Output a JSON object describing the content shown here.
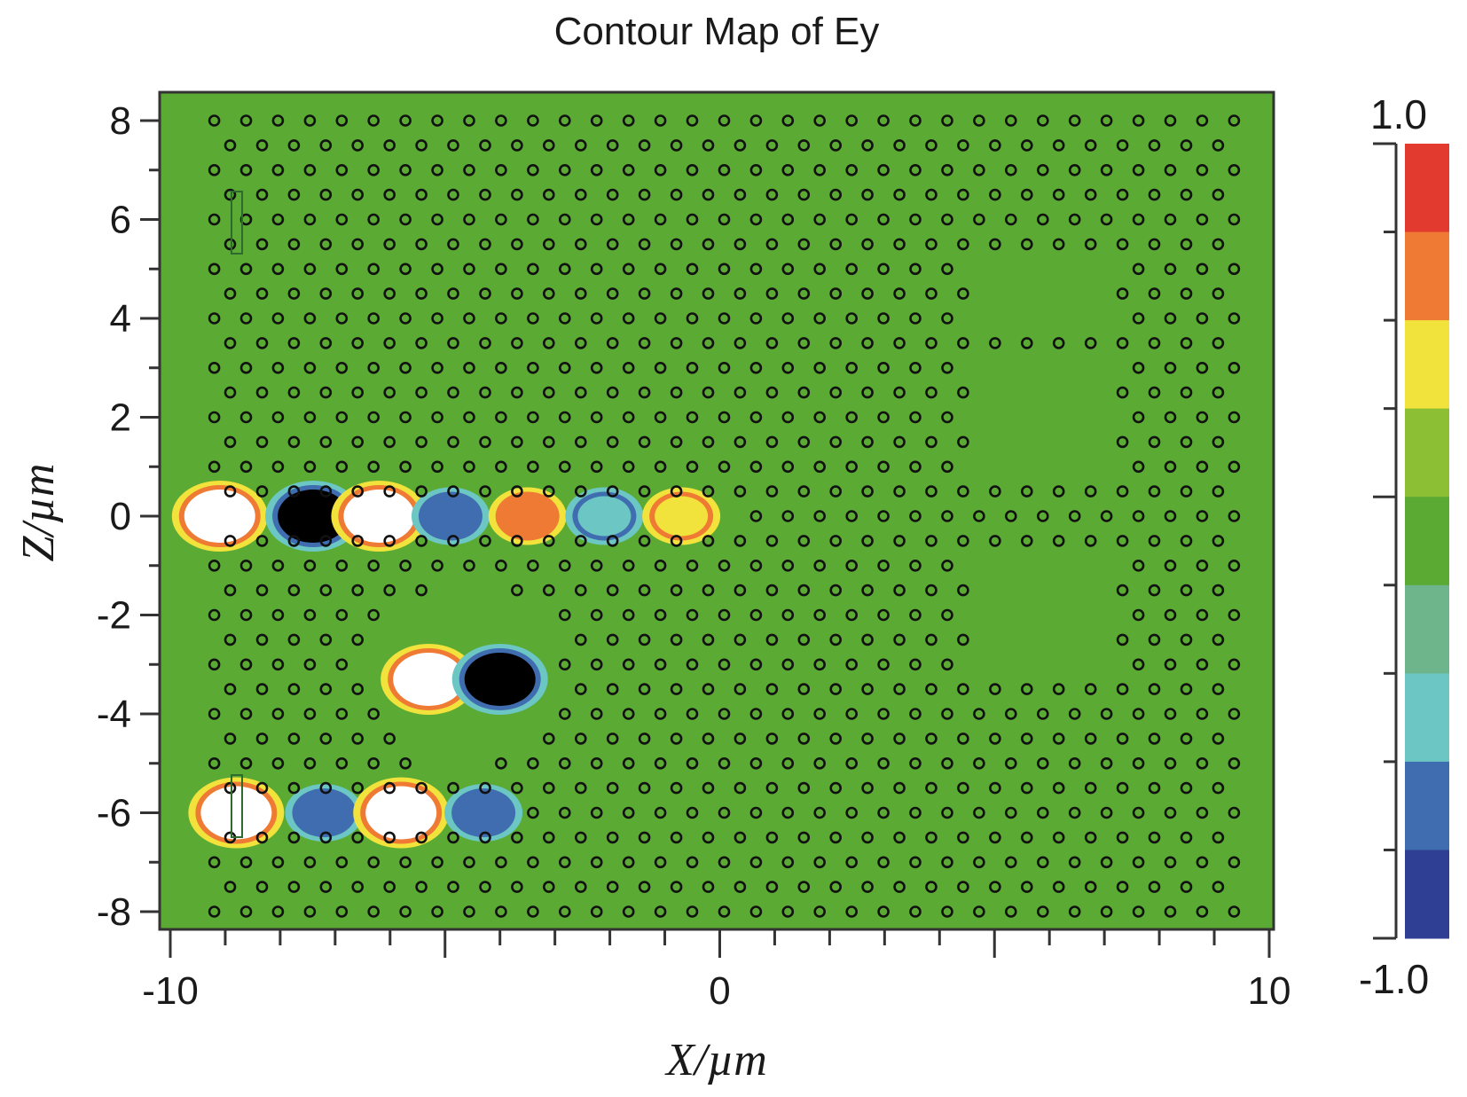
{
  "chart_data": {
    "type": "heatmap",
    "title": "Contour Map of Ey",
    "xlabel": "X/µm",
    "ylabel": "Z/µm",
    "xlim": [
      -10,
      10
    ],
    "ylim": [
      -8.5,
      8.5
    ],
    "x_ticks": [
      "-10",
      "0",
      "10"
    ],
    "y_ticks": [
      "8",
      "6",
      "4",
      "2",
      "0",
      "-2",
      "-4",
      "-6",
      "-8"
    ],
    "colorbar": {
      "min": -1.0,
      "max": 1.0,
      "label_max": "1.0",
      "label_min": "-1.0",
      "levels": [
        "#e23a2e",
        "#ef7a33",
        "#f2e23c",
        "#8dbf34",
        "#5aaa33",
        "#6fb58c",
        "#6cc6c3",
        "#3f6db0",
        "#2e3f94"
      ]
    },
    "background_value": 0.0,
    "background_color": "#5aaa33",
    "lattice": {
      "row_spacing_um": 0.5,
      "col_spacing_um": 0.58
    },
    "field_features": [
      {
        "x": -9.1,
        "z": 0.0,
        "value": 1.0
      },
      {
        "x": -7.4,
        "z": 0.0,
        "value": -1.0
      },
      {
        "x": -6.2,
        "z": 0.0,
        "value": 1.0
      },
      {
        "x": -4.9,
        "z": 0.0,
        "value": -0.8
      },
      {
        "x": -3.5,
        "z": 0.0,
        "value": 0.7
      },
      {
        "x": -2.1,
        "z": 0.0,
        "value": -0.6
      },
      {
        "x": -0.7,
        "z": 0.0,
        "value": 0.6
      },
      {
        "x": -8.8,
        "z": -6.0,
        "value": 1.0
      },
      {
        "x": -7.2,
        "z": -6.0,
        "value": -0.8
      },
      {
        "x": -5.8,
        "z": -6.0,
        "value": 1.0
      },
      {
        "x": -4.3,
        "z": -6.0,
        "value": -0.7
      },
      {
        "x": -5.3,
        "z": -3.3,
        "value": 1.0
      },
      {
        "x": -4.0,
        "z": -3.3,
        "value": -1.0
      }
    ]
  }
}
